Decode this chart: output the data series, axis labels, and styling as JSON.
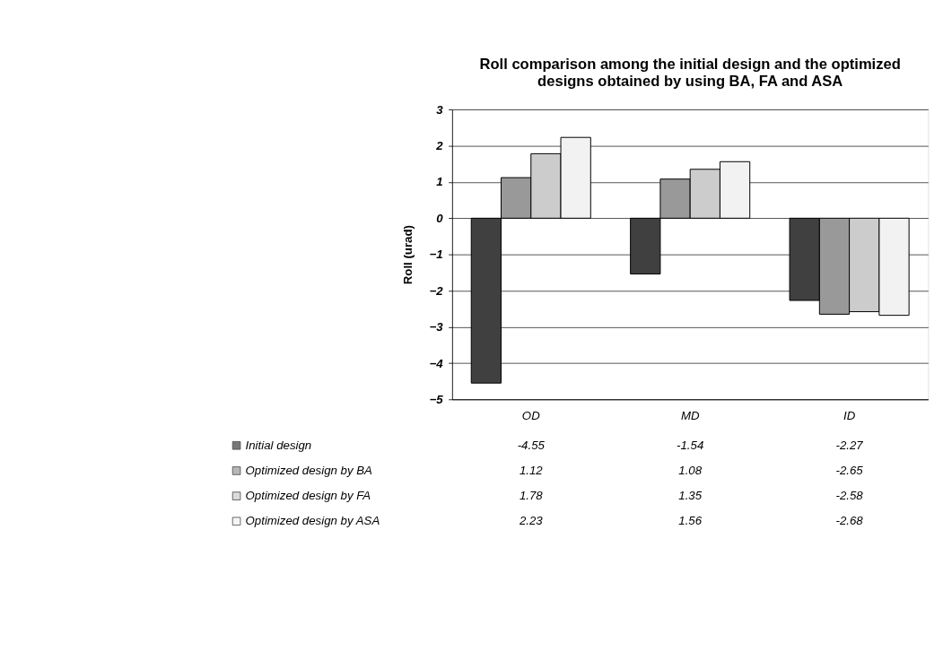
{
  "chart_data": {
    "type": "bar",
    "title": [
      "Roll comparison among the initial design and the optimized",
      "designs obtained by using BA, FA and ASA"
    ],
    "ylabel": "Roll (urad)",
    "categories": [
      "OD",
      "MD",
      "ID"
    ],
    "series": [
      {
        "name": "Initial design",
        "color": "#404040",
        "values": [
          -4.55,
          -1.54,
          -2.27
        ]
      },
      {
        "name": "Optimized design by BA",
        "color": "#999999",
        "values": [
          1.12,
          1.08,
          -2.65
        ]
      },
      {
        "name": "Optimized design by FA",
        "color": "#cccccc",
        "values": [
          1.78,
          1.35,
          -2.58
        ]
      },
      {
        "name": "Optimized design by ASA",
        "color": "#f2f2f2",
        "values": [
          2.23,
          1.56,
          -2.68
        ]
      }
    ],
    "ylim": [
      -5,
      3
    ],
    "yticks": [
      -5,
      -4,
      -3,
      -2,
      -1,
      0,
      1,
      2,
      3
    ],
    "grid": "y",
    "legend": "bottom",
    "data_labels": true
  }
}
